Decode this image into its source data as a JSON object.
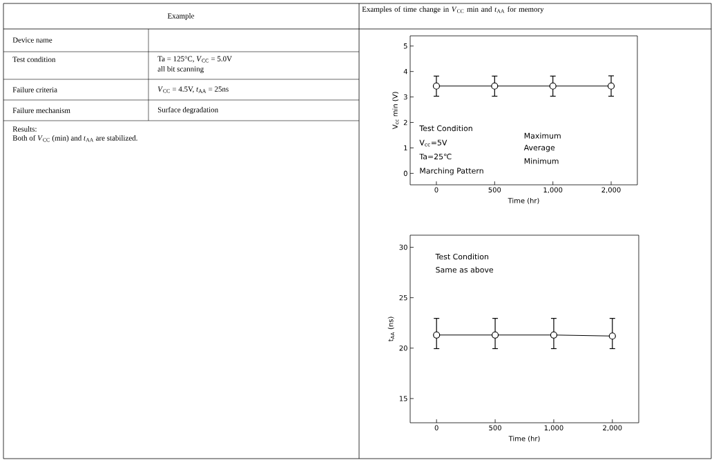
{
  "chart_data": [
    {
      "type": "other",
      "title": "Example",
      "annotations": [
        "Device name",
        "Test condition",
        "Ta = 125°C, *V*$_{CC}$ = 5.0V",
        "all bit scanning",
        "Failure criteria",
        "*V*$_{CC}$ = 4.5V, *t*$_{AA}$ = 25ns",
        "Failure mechanism",
        "Surface degradation",
        "Results:",
        "Both of *V*$_{CC}$ (min) and *t*$_{AA}$ are stabilized."
      ]
    },
    {
      "type": "line",
      "title": "Examples of time change in *V*$_{CC}$ min and *t*$_{AA}$ for memory",
      "xlabel": "Time (hr)",
      "ylabel": "V$_{cc}$ min (V)",
      "categories": [
        "0",
        "500",
        "1,000",
        "2,000"
      ],
      "values": [
        3.43,
        3.43,
        3.43,
        3.43
      ],
      "errors": [
        [
          3.03,
          3.82
        ],
        [
          3.03,
          3.82
        ],
        [
          3.03,
          3.82
        ],
        [
          3.03,
          3.83
        ]
      ],
      "color": "#000000",
      "marker": "circle",
      "line_style": "solid",
      "ylim": [
        -0.45,
        5.4
      ],
      "yticks": [
        0,
        1,
        2,
        3,
        4,
        5
      ],
      "annotations": [
        "Test Condition",
        "V$_{cc}$=5V",
        "Ta=25℃",
        "Marching Pattern",
        "Maximum",
        "Average",
        "Minimum"
      ]
    },
    {
      "type": "line",
      "xlabel": "Time (hr)",
      "ylabel": "t$_{AA}$ (ns)",
      "categories": [
        "0",
        "500",
        "1,000",
        "2,000"
      ],
      "values": [
        21.3,
        21.3,
        21.3,
        21.2
      ],
      "errors": [
        [
          19.95,
          22.95
        ],
        [
          19.95,
          22.95
        ],
        [
          19.95,
          22.95
        ],
        [
          19.95,
          22.95
        ]
      ],
      "color": "#000000",
      "marker": "circle",
      "line_style": "solid",
      "ylim": [
        12.6,
        31.2
      ],
      "yticks": [
        15,
        20,
        25,
        30
      ],
      "annotations": [
        "Test Condition",
        "Same as above"
      ]
    }
  ]
}
